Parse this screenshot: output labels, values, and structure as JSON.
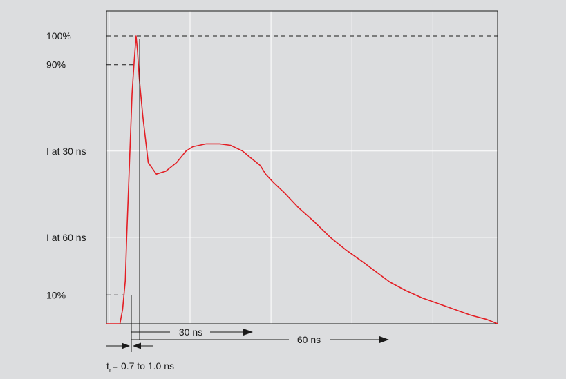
{
  "chart_data": {
    "type": "line",
    "title": "",
    "xlabel": "",
    "ylabel": "",
    "xlim": [
      -1,
      144
    ],
    "ylim": [
      0,
      1.0
    ],
    "grid": true,
    "y_ticks": [
      {
        "label": "100%",
        "value": 1.0,
        "style": "dashed"
      },
      {
        "label": "90%",
        "value": 0.9,
        "style": "dashed"
      },
      {
        "label": "I at 30 ns",
        "value": 0.6,
        "style": "solid"
      },
      {
        "label": "I at 60 ns",
        "value": 0.3,
        "style": "solid"
      },
      {
        "label": "10%",
        "value": 0.1,
        "style": "dashed"
      }
    ],
    "x_gridlines": [
      0,
      30,
      60,
      90,
      120
    ],
    "series": [
      {
        "color": "#e31e24",
        "x": [
          -1,
          0.5,
          4.0,
          5.0,
          6.0,
          6.5,
          7.5,
          8.5,
          9.2,
          10.0,
          10.5,
          11.2,
          12.5,
          14.5,
          17.5,
          21.0,
          25.0,
          28.5,
          31.0,
          36.0,
          41.0,
          45.0,
          49.5,
          52.0,
          56.0,
          58.0,
          61.0,
          65.0,
          70.0,
          76.0,
          82.0,
          88.0,
          94.0,
          99.0,
          104.0,
          110.0,
          116.0,
          122.0,
          128.0,
          134.0,
          140.0,
          144.0
        ],
        "y": [
          0.0,
          0.0,
          0.0,
          0.05,
          0.15,
          0.3,
          0.55,
          0.8,
          0.9,
          1.0,
          0.95,
          0.85,
          0.72,
          0.56,
          0.52,
          0.53,
          0.56,
          0.6,
          0.615,
          0.625,
          0.625,
          0.62,
          0.6,
          0.58,
          0.55,
          0.52,
          0.49,
          0.455,
          0.405,
          0.355,
          0.3,
          0.255,
          0.215,
          0.18,
          0.145,
          0.115,
          0.09,
          0.07,
          0.05,
          0.03,
          0.015,
          0.0
        ]
      }
    ],
    "annotations": {
      "span_30": "30 ns",
      "span_60": "60 ns",
      "rise_time": "= 0.7 to 1.0 ns",
      "rise_symbol": "t",
      "rise_subscript": "r"
    }
  },
  "colors": {
    "curve": "#e31e24",
    "background": "#dcdddf",
    "axes": "#1a1a1a",
    "grid": "#ffffff"
  }
}
